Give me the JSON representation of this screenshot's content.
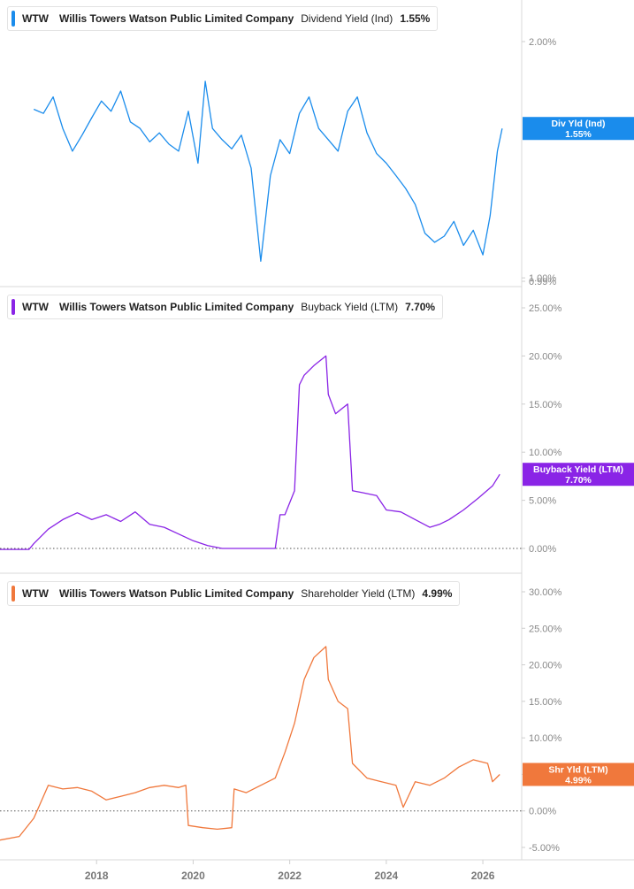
{
  "panels": [
    {
      "ticker": "WTW",
      "company": "Willis Towers Watson Public Limited Company",
      "metric": "Dividend Yield (Ind)",
      "value": "1.55%",
      "color": "#1a8cec",
      "tag_label": "Div Yld (Ind)",
      "tag_value": "1.55%"
    },
    {
      "ticker": "WTW",
      "company": "Willis Towers Watson Public Limited Company",
      "metric": "Buyback Yield (LTM)",
      "value": "7.70%",
      "color": "#8a24e6",
      "tag_label": "Buyback Yield (LTM)",
      "tag_value": "7.70%"
    },
    {
      "ticker": "WTW",
      "company": "Willis Towers Watson Public Limited Company",
      "metric": "Shareholder Yield (LTM)",
      "value": "4.99%",
      "color": "#f0783c",
      "tag_label": "Shr Yld (LTM)",
      "tag_value": "4.99%"
    }
  ],
  "chart_data": [
    {
      "type": "line",
      "title": "WTW Willis Towers Watson Public Limited Company Dividend Yield (Ind) 1.55%",
      "series": [
        {
          "name": "Dividend Yield (Ind)",
          "x": [
            2016.7,
            2016.9,
            2017.1,
            2017.3,
            2017.5,
            2017.7,
            2017.9,
            2018.1,
            2018.3,
            2018.5,
            2018.7,
            2018.9,
            2019.1,
            2019.3,
            2019.5,
            2019.7,
            2019.9,
            2020.1,
            2020.25,
            2020.4,
            2020.6,
            2020.8,
            2021.0,
            2021.2,
            2021.4,
            2021.6,
            2021.8,
            2022.0,
            2022.2,
            2022.4,
            2022.6,
            2022.8,
            2023.0,
            2023.2,
            2023.4,
            2023.6,
            2023.8,
            2024.0,
            2024.2,
            2024.4,
            2024.6,
            2024.8,
            2025.0,
            2025.2,
            2025.4,
            2025.6,
            2025.8,
            2026.0,
            2026.15,
            2026.3,
            2026.4
          ],
          "y": [
            1.64,
            1.62,
            1.7,
            1.55,
            1.45,
            1.52,
            1.6,
            1.68,
            1.63,
            1.73,
            1.58,
            1.55,
            1.49,
            1.53,
            1.48,
            1.45,
            1.63,
            1.4,
            1.78,
            1.55,
            1.5,
            1.46,
            1.52,
            1.38,
            1.05,
            1.35,
            1.5,
            1.44,
            1.62,
            1.7,
            1.55,
            1.5,
            1.45,
            1.63,
            1.7,
            1.53,
            1.44,
            1.4,
            1.35,
            1.3,
            1.24,
            1.14,
            1.11,
            1.13,
            1.18,
            1.1,
            1.15,
            1.07,
            1.2,
            1.45,
            1.55
          ]
        }
      ],
      "ylim": [
        0.99,
        2.0
      ],
      "y_scale": "log",
      "y_ticks": [
        "2.00%",
        "1.00%",
        "0.99%"
      ],
      "x_ticks": [
        "2018",
        "2020",
        "2022",
        "2024",
        "2026"
      ]
    },
    {
      "type": "line",
      "title": "WTW Willis Towers Watson Public Limited Company Buyback Yield (LTM) 7.70%",
      "series": [
        {
          "name": "Buyback Yield (LTM)",
          "x": [
            2016.0,
            2016.6,
            2016.7,
            2017.0,
            2017.3,
            2017.6,
            2017.9,
            2018.2,
            2018.5,
            2018.8,
            2019.1,
            2019.4,
            2019.7,
            2020.0,
            2020.3,
            2020.6,
            2020.9,
            2021.2,
            2021.5,
            2021.7,
            2021.8,
            2021.9,
            2022.1,
            2022.2,
            2022.3,
            2022.5,
            2022.75,
            2022.8,
            2022.95,
            2023.2,
            2023.3,
            2023.5,
            2023.8,
            2024.0,
            2024.3,
            2024.6,
            2024.9,
            2025.1,
            2025.3,
            2025.6,
            2025.9,
            2026.2,
            2026.35
          ],
          "y": [
            -0.1,
            -0.1,
            0.5,
            2.0,
            3.0,
            3.7,
            3.0,
            3.5,
            2.8,
            3.8,
            2.5,
            2.2,
            1.5,
            0.8,
            0.3,
            0.0,
            0.0,
            0.0,
            0.0,
            0.0,
            3.5,
            3.5,
            6.0,
            17.0,
            18.0,
            19.0,
            20.0,
            16.0,
            14.0,
            15.0,
            6.0,
            5.8,
            5.5,
            4.0,
            3.8,
            3.0,
            2.2,
            2.5,
            3.0,
            4.0,
            5.2,
            6.5,
            7.7
          ]
        }
      ],
      "ylim": [
        -0.2,
        25.0
      ],
      "y_ticks": [
        "25.00%",
        "20.00%",
        "15.00%",
        "10.00%",
        "5.00%",
        "0.00%"
      ],
      "reference_line": 0,
      "x_ticks": [
        "2018",
        "2020",
        "2022",
        "2024",
        "2026"
      ]
    },
    {
      "type": "line",
      "title": "WTW Willis Towers Watson Public Limited Company Shareholder Yield (LTM) 4.99%",
      "series": [
        {
          "name": "Shareholder Yield (LTM)",
          "x": [
            2016.0,
            2016.4,
            2016.7,
            2016.8,
            2017.0,
            2017.3,
            2017.6,
            2017.9,
            2018.2,
            2018.5,
            2018.8,
            2019.1,
            2019.4,
            2019.7,
            2019.85,
            2019.9,
            2020.2,
            2020.5,
            2020.8,
            2020.85,
            2021.1,
            2021.4,
            2021.7,
            2021.9,
            2022.1,
            2022.3,
            2022.5,
            2022.75,
            2022.8,
            2023.0,
            2023.2,
            2023.3,
            2023.6,
            2023.9,
            2024.2,
            2024.35,
            2024.6,
            2024.9,
            2025.2,
            2025.5,
            2025.8,
            2026.1,
            2026.2,
            2026.35
          ],
          "y": [
            -4.0,
            -3.5,
            -1.0,
            0.5,
            3.5,
            3.0,
            3.2,
            2.7,
            1.5,
            2.0,
            2.5,
            3.2,
            3.5,
            3.2,
            3.5,
            -2.0,
            -2.3,
            -2.5,
            -2.3,
            3.0,
            2.5,
            3.5,
            4.5,
            8.0,
            12.0,
            18.0,
            21.0,
            22.5,
            18.0,
            15.0,
            14.0,
            6.5,
            4.5,
            4.0,
            3.5,
            0.5,
            4.0,
            3.5,
            4.5,
            6.0,
            7.0,
            6.5,
            4.0,
            4.99
          ]
        }
      ],
      "ylim": [
        -6.0,
        30.0
      ],
      "y_ticks": [
        "30.00%",
        "25.00%",
        "20.00%",
        "15.00%",
        "10.00%",
        "5.00%",
        "0.00%",
        "-5.00%"
      ],
      "reference_line": 0,
      "x_ticks": [
        "2018",
        "2020",
        "2022",
        "2024",
        "2026"
      ]
    }
  ]
}
